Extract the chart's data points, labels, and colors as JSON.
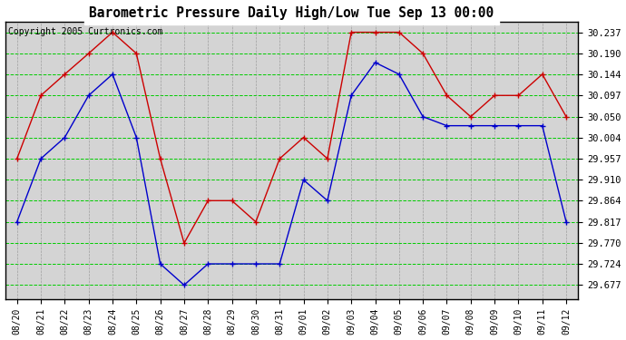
{
  "title": "Barometric Pressure Daily High/Low Tue Sep 13 00:00",
  "copyright": "Copyright 2005 Curtronics.com",
  "outer_bg": "#ffffff",
  "plot_bg": "#d4d4d4",
  "grid_color_h": "#00cc00",
  "grid_color_v": "#888888",
  "x_labels": [
    "08/20",
    "08/21",
    "08/22",
    "08/23",
    "08/24",
    "08/25",
    "08/26",
    "08/27",
    "08/28",
    "08/29",
    "08/30",
    "08/31",
    "09/01",
    "09/02",
    "09/03",
    "09/04",
    "09/05",
    "09/06",
    "09/07",
    "09/08",
    "09/09",
    "09/10",
    "09/11",
    "09/12"
  ],
  "high_values": [
    29.957,
    30.097,
    30.144,
    30.19,
    30.237,
    30.19,
    29.957,
    29.77,
    29.864,
    29.864,
    29.817,
    29.957,
    30.004,
    29.957,
    30.237,
    30.237,
    30.237,
    30.19,
    30.097,
    30.05,
    30.097,
    30.097,
    30.144,
    30.05
  ],
  "low_values": [
    29.817,
    29.957,
    30.004,
    30.097,
    30.144,
    30.004,
    29.724,
    29.677,
    29.724,
    29.724,
    29.724,
    29.724,
    29.91,
    29.864,
    30.097,
    30.17,
    30.144,
    30.05,
    30.03,
    30.03,
    30.03,
    30.03,
    30.03,
    29.817
  ],
  "high_color": "#cc0000",
  "low_color": "#0000cc",
  "yticks": [
    29.677,
    29.724,
    29.77,
    29.817,
    29.864,
    29.91,
    29.957,
    30.004,
    30.05,
    30.097,
    30.144,
    30.19,
    30.237
  ],
  "ylim": [
    29.645,
    30.26
  ],
  "title_color": "#000000",
  "tick_color": "#000000",
  "border_color": "#000000",
  "title_bg": "#ffffff",
  "title_fontsize": 10.5,
  "copyright_fontsize": 7,
  "tick_fontsize": 7.5,
  "xtick_fontsize": 7
}
